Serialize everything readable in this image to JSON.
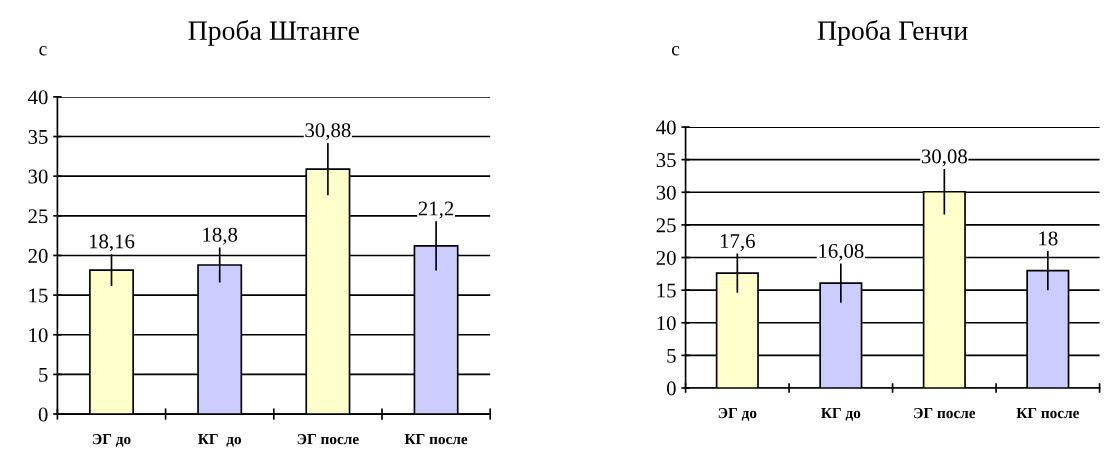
{
  "chart_data": [
    {
      "type": "bar",
      "title": "Проба Штанге",
      "ylabel": "с",
      "categories": [
        "ЭГ до",
        "КГ  до",
        "ЭГ после",
        "КГ после"
      ],
      "values": [
        18.16,
        18.8,
        30.88,
        21.2
      ],
      "value_labels": [
        "18,16",
        "18,8",
        "30,88",
        "21,2"
      ],
      "errors": [
        2,
        2.2,
        3.3,
        3.1
      ],
      "colors": [
        "#ffffcc",
        "#ccccff",
        "#ffffcc",
        "#ccccff"
      ],
      "ylim": [
        0,
        40
      ],
      "yticks": [
        0,
        5,
        10,
        15,
        20,
        25,
        30,
        35,
        40
      ],
      "grid": "y",
      "legend": false
    },
    {
      "type": "bar",
      "title": "Проба Генчи",
      "ylabel": "с",
      "categories": [
        "ЭГ до",
        "КГ до",
        "ЭГ после",
        "КГ после"
      ],
      "values": [
        17.6,
        16.08,
        30.08,
        18
      ],
      "value_labels": [
        "17,6",
        "16,08",
        "30,08",
        "18"
      ],
      "errors": [
        3,
        3,
        3.5,
        3
      ],
      "colors": [
        "#ffffcc",
        "#ccccff",
        "#ffffcc",
        "#ccccff"
      ],
      "ylim": [
        0,
        40
      ],
      "yticks": [
        0,
        5,
        10,
        15,
        20,
        25,
        30,
        35,
        40
      ],
      "grid": "y",
      "legend": false
    }
  ]
}
